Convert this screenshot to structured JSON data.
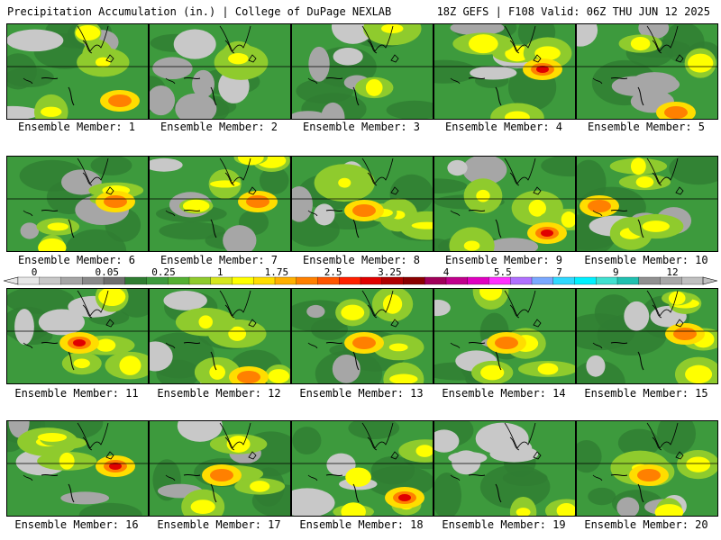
{
  "header": {
    "left": "Precipitation Accumulation (in.) | College of DuPage NEXLAB",
    "right": "18Z GEFS | F108 Valid: 06Z THU JUN 12 2025"
  },
  "colorbar": {
    "tick_labels": [
      "0",
      "0.05",
      "0.25",
      "1",
      "1.75",
      "2.5",
      "3.25",
      "4",
      "5.5",
      "7",
      "9",
      "12"
    ],
    "colors": [
      "#e6e6e6",
      "#c8c8c8",
      "#a6a6a6",
      "#8a8a8a",
      "#6e6e6e",
      "#2f7d32",
      "#3d9a3d",
      "#54b032",
      "#8fcb2d",
      "#d6e61e",
      "#ffff00",
      "#ffdd00",
      "#ffb000",
      "#ff8000",
      "#ff5500",
      "#ff2000",
      "#e00000",
      "#b00000",
      "#8a0000",
      "#a0005a",
      "#c0008c",
      "#e000c0",
      "#ff30ff",
      "#b070ff",
      "#7aa8ff",
      "#30d8ff",
      "#00f0ff",
      "#40e0d0",
      "#20c0b0",
      "#909090",
      "#a8a8a8",
      "#c0c0c0"
    ]
  },
  "members": [
    {
      "label": "Ensemble Member: 1",
      "intensity": "moderate",
      "hotspot": "lower-right"
    },
    {
      "label": "Ensemble Member: 2",
      "intensity": "light",
      "hotspot": "none"
    },
    {
      "label": "Ensemble Member: 3",
      "intensity": "light",
      "hotspot": "none"
    },
    {
      "label": "Ensemble Member: 4",
      "intensity": "heavy",
      "hotspot": "right"
    },
    {
      "label": "Ensemble Member: 5",
      "intensity": "light",
      "hotspot": "bottom"
    },
    {
      "label": "Ensemble Member: 6",
      "intensity": "moderate",
      "hotspot": "right"
    },
    {
      "label": "Ensemble Member: 7",
      "intensity": "moderate",
      "hotspot": "right"
    },
    {
      "label": "Ensemble Member: 8",
      "intensity": "moderate",
      "hotspot": "center"
    },
    {
      "label": "Ensemble Member: 9",
      "intensity": "heavy",
      "hotspot": "lower-right"
    },
    {
      "label": "Ensemble Member: 10",
      "intensity": "moderate",
      "hotspot": "left"
    },
    {
      "label": "Ensemble Member: 11",
      "intensity": "heavy",
      "hotspot": "center"
    },
    {
      "label": "Ensemble Member: 12",
      "intensity": "moderate",
      "hotspot": "bottom"
    },
    {
      "label": "Ensemble Member: 13",
      "intensity": "moderate",
      "hotspot": "center"
    },
    {
      "label": "Ensemble Member: 14",
      "intensity": "moderate",
      "hotspot": "center"
    },
    {
      "label": "Ensemble Member: 15",
      "intensity": "moderate",
      "hotspot": "right"
    },
    {
      "label": "Ensemble Member: 16",
      "intensity": "heavy",
      "hotspot": "right"
    },
    {
      "label": "Ensemble Member: 17",
      "intensity": "moderate",
      "hotspot": "center"
    },
    {
      "label": "Ensemble Member: 18",
      "intensity": "heavy",
      "hotspot": "lower-right"
    },
    {
      "label": "Ensemble Member: 19",
      "intensity": "light",
      "hotspot": "none"
    },
    {
      "label": "Ensemble Member: 20",
      "intensity": "moderate",
      "hotspot": "center"
    }
  ]
}
